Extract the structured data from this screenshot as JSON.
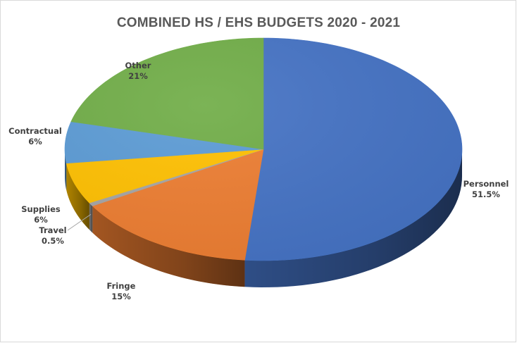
{
  "chart_data": {
    "type": "pie",
    "title": "COMBINED HS / EHS BUDGETS 2020 - 2021",
    "slices": [
      {
        "name": "Personnel",
        "value": 51.5,
        "label": "51.5%",
        "color": "#4472C4"
      },
      {
        "name": "Fringe",
        "value": 15,
        "label": "15%",
        "color": "#ED7D31"
      },
      {
        "name": "Travel",
        "value": 0.5,
        "label": "0.5%",
        "color": "#A5A5A5"
      },
      {
        "name": "Supplies",
        "value": 6,
        "label": "6%",
        "color": "#FFC000"
      },
      {
        "name": "Contractual",
        "value": 6,
        "label": "6%",
        "color": "#5B9BD5"
      },
      {
        "name": "Other",
        "value": 21,
        "label": "21%",
        "color": "#70AD47"
      }
    ],
    "legend": "none",
    "style": "3d-pie"
  }
}
